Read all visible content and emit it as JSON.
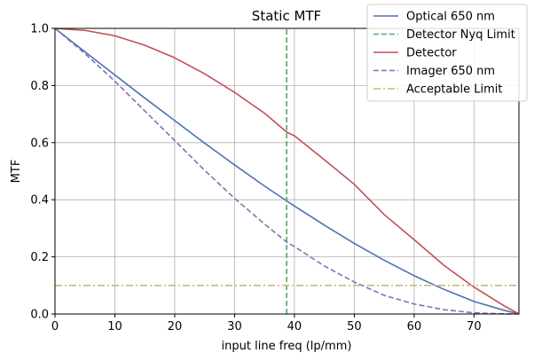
{
  "chart_data": {
    "type": "line",
    "title": "Static MTF",
    "xlabel": "input line freq (lp/mm)",
    "ylabel": "MTF",
    "xlim": [
      0,
      77.5
    ],
    "ylim": [
      0,
      1.0
    ],
    "grid": true,
    "legend_position": "top-right",
    "x_ticks": [
      0,
      10,
      20,
      30,
      40,
      50,
      60,
      70
    ],
    "x_tick_labels": [
      "0",
      "10",
      "20",
      "30",
      "40",
      "50",
      "60",
      "70"
    ],
    "y_ticks": [
      0,
      0.2,
      0.4,
      0.6,
      0.8,
      1.0
    ],
    "y_tick_labels": [
      "0.0",
      "0.2",
      "0.4",
      "0.6",
      "0.8",
      "1.0"
    ],
    "series": [
      {
        "name": "Optical 650 nm",
        "color": "#4c72b0",
        "style": "solid",
        "x": [
          0,
          5,
          10,
          15,
          20,
          25,
          30,
          35,
          38.7,
          40,
          45,
          50,
          55,
          60,
          65,
          70,
          75,
          77.5
        ],
        "y": [
          1.0,
          0.918,
          0.837,
          0.756,
          0.677,
          0.598,
          0.522,
          0.448,
          0.396,
          0.378,
          0.311,
          0.247,
          0.188,
          0.134,
          0.086,
          0.044,
          0.013,
          0.0
        ]
      },
      {
        "name": "Detector Nyq Limit",
        "color": "#55a868",
        "style": "dashed",
        "x": [
          38.7,
          38.7
        ],
        "y": [
          0,
          1.0
        ]
      },
      {
        "name": "Detector",
        "color": "#c44e52",
        "style": "solid",
        "x": [
          0,
          5,
          10,
          15,
          20,
          25,
          30,
          35,
          38.7,
          40,
          45,
          50,
          55,
          60,
          65,
          70,
          75,
          77.5
        ],
        "y": [
          1.0,
          0.993,
          0.974,
          0.941,
          0.897,
          0.841,
          0.776,
          0.703,
          0.637,
          0.624,
          0.54,
          0.454,
          0.348,
          0.26,
          0.17,
          0.094,
          0.029,
          0.0
        ]
      },
      {
        "name": "Imager 650 nm",
        "color": "#8172b2",
        "style": "dashed",
        "x": [
          0,
          5,
          10,
          15,
          20,
          25,
          30,
          35,
          38.7,
          40,
          45,
          50,
          55,
          60,
          65,
          70,
          75,
          77.5
        ],
        "y": [
          1.0,
          0.912,
          0.815,
          0.711,
          0.607,
          0.503,
          0.405,
          0.315,
          0.252,
          0.236,
          0.168,
          0.112,
          0.065,
          0.035,
          0.015,
          0.004,
          0.0004,
          0.0
        ]
      },
      {
        "name": "Acceptable Limit",
        "color": "#ccb974",
        "style": "dashdot",
        "x": [
          0,
          77.5
        ],
        "y": [
          0.1,
          0.1
        ]
      }
    ]
  }
}
